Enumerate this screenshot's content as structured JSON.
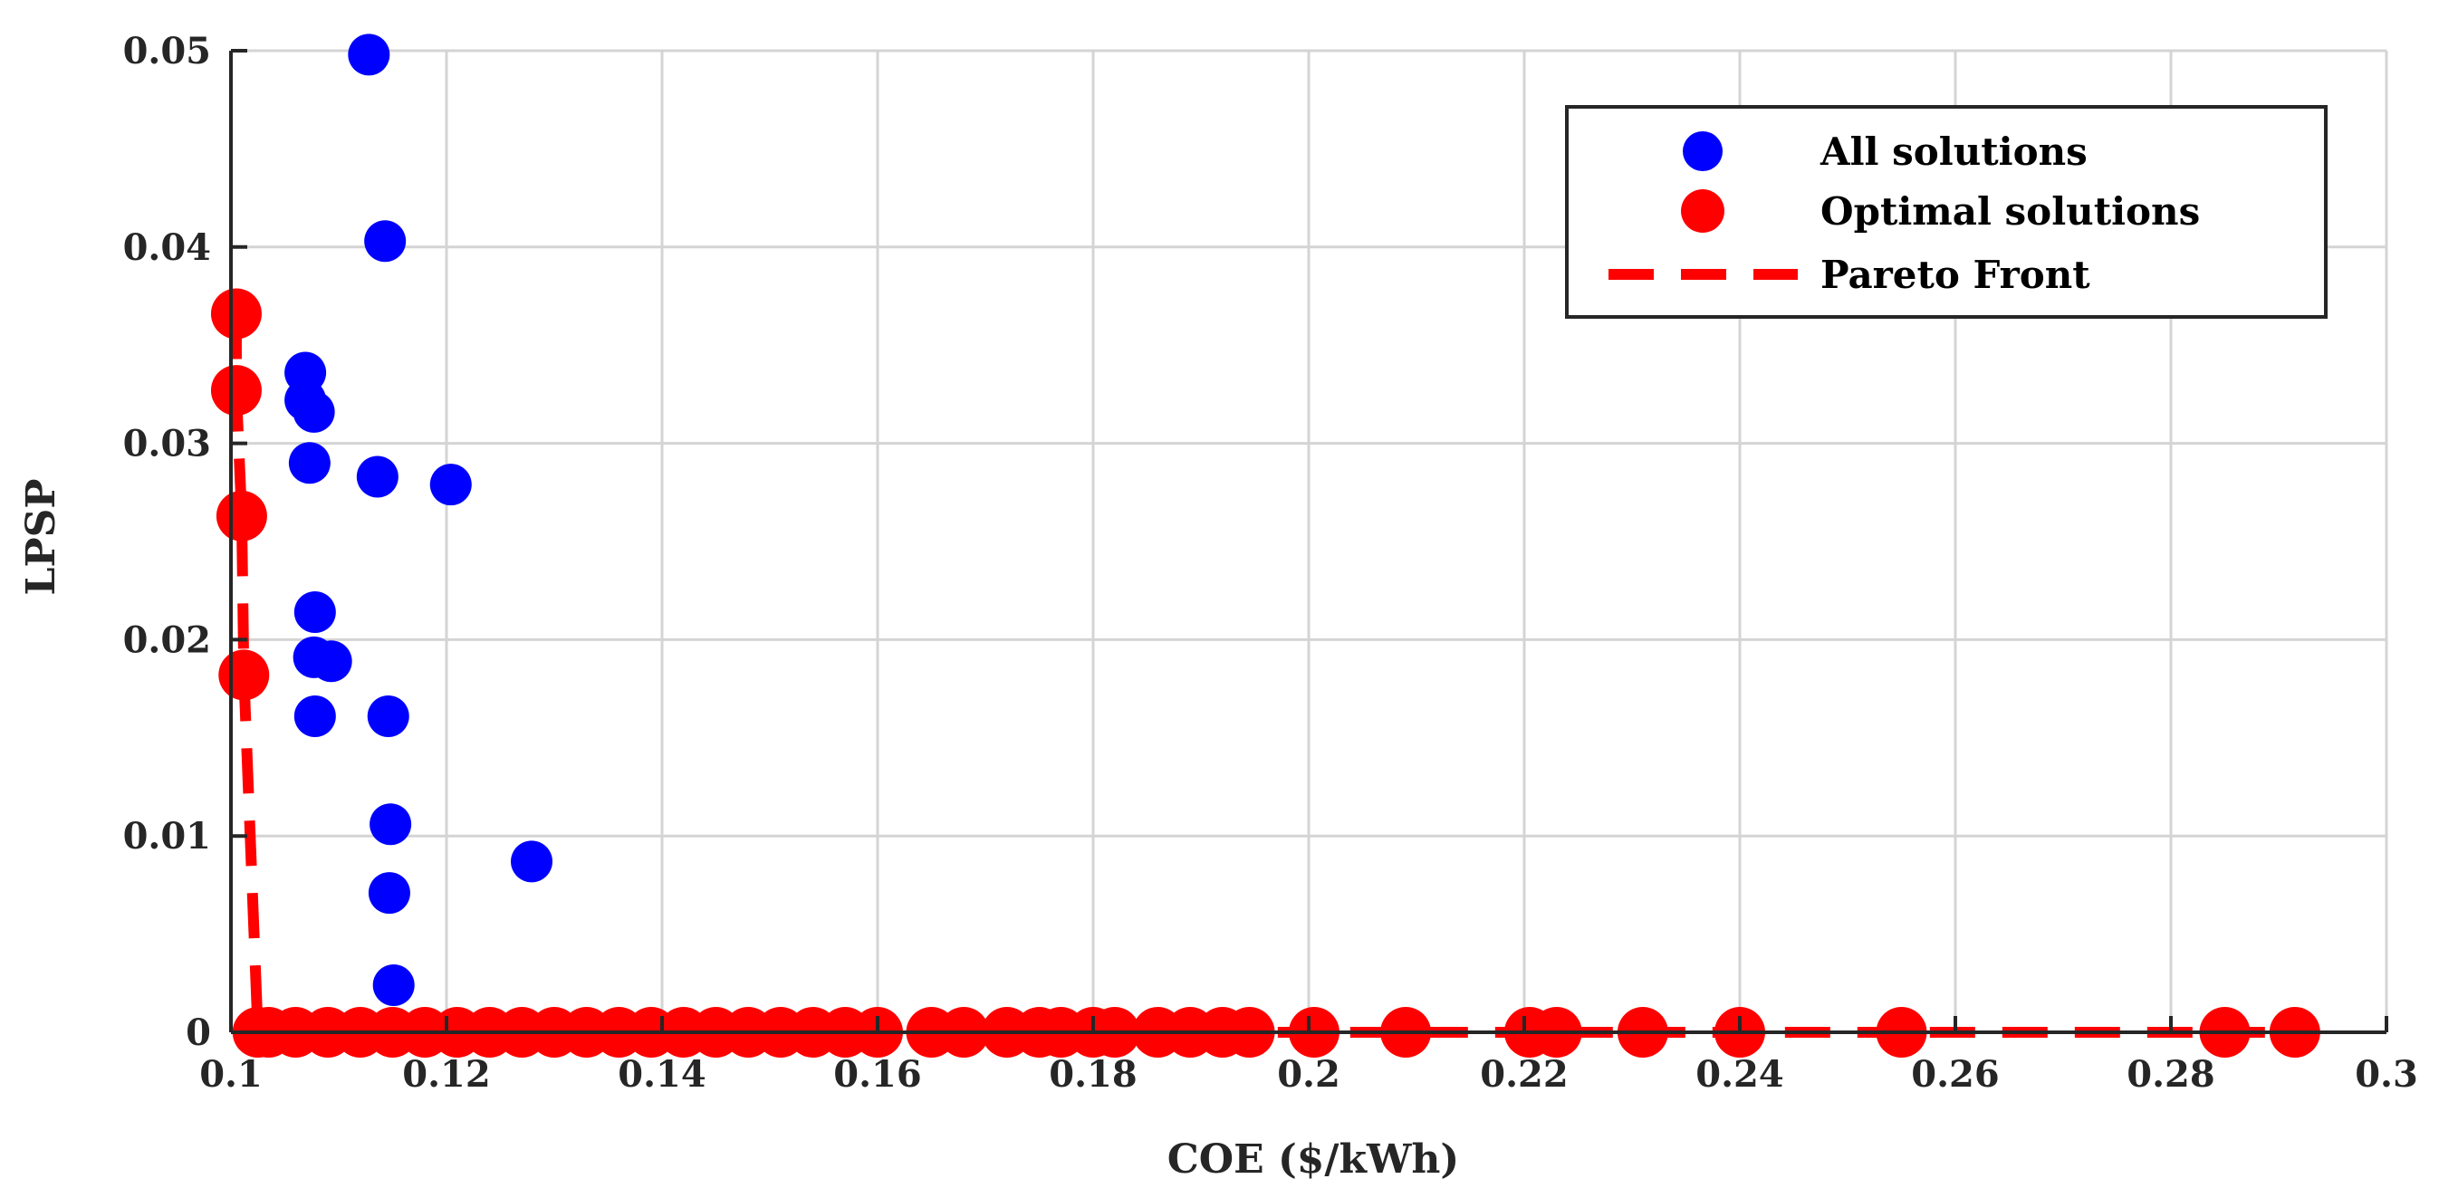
{
  "chart_data": {
    "type": "scatter",
    "title": "",
    "xlabel": "COE ($/kWh)",
    "ylabel": "LPSP",
    "xlim": [
      0.1,
      0.3
    ],
    "ylim": [
      0,
      0.05
    ],
    "xticks": [
      0.1,
      0.12,
      0.14,
      0.16,
      0.18,
      0.2,
      0.22,
      0.24,
      0.26,
      0.28,
      0.3
    ],
    "xtick_labels": [
      "0.1",
      "0.12",
      "0.14",
      "0.16",
      "0.18",
      "0.2",
      "0.22",
      "0.24",
      "0.26",
      "0.28",
      "0.3"
    ],
    "yticks": [
      0,
      0.01,
      0.02,
      0.03,
      0.04,
      0.05
    ],
    "ytick_labels": [
      "0",
      "0.01",
      "0.02",
      "0.03",
      "0.04",
      "0.05"
    ],
    "grid": true,
    "legend_position": "top-right",
    "series": [
      {
        "name": "All solutions",
        "kind": "marker",
        "color": "#0000ff",
        "points": [
          [
            0.1128,
            0.0498
          ],
          [
            0.1143,
            0.0403
          ],
          [
            0.1069,
            0.0336
          ],
          [
            0.1069,
            0.0322
          ],
          [
            0.1077,
            0.0316
          ],
          [
            0.1073,
            0.029
          ],
          [
            0.1136,
            0.0283
          ],
          [
            0.1204,
            0.0279
          ],
          [
            0.1078,
            0.0214
          ],
          [
            0.1077,
            0.0191
          ],
          [
            0.1093,
            0.0189
          ],
          [
            0.1078,
            0.0161
          ],
          [
            0.1146,
            0.0161
          ],
          [
            0.1148,
            0.0106
          ],
          [
            0.1279,
            0.0087
          ],
          [
            0.1147,
            0.0071
          ],
          [
            0.1151,
            0.0024
          ]
        ]
      },
      {
        "name": "Optimal solutions",
        "kind": "marker",
        "color": "#ff0000",
        "points": [
          [
            0.1005,
            0.0366
          ],
          [
            0.1005,
            0.0327
          ],
          [
            0.101,
            0.0263
          ],
          [
            0.1012,
            0.0182
          ],
          [
            0.1025,
            0
          ],
          [
            0.1035,
            0
          ],
          [
            0.106,
            0
          ],
          [
            0.109,
            0
          ],
          [
            0.112,
            0
          ],
          [
            0.115,
            0
          ],
          [
            0.118,
            0
          ],
          [
            0.121,
            0
          ],
          [
            0.124,
            0
          ],
          [
            0.127,
            0
          ],
          [
            0.13,
            0
          ],
          [
            0.133,
            0
          ],
          [
            0.136,
            0
          ],
          [
            0.139,
            0
          ],
          [
            0.142,
            0
          ],
          [
            0.145,
            0
          ],
          [
            0.148,
            0
          ],
          [
            0.151,
            0
          ],
          [
            0.154,
            0
          ],
          [
            0.157,
            0
          ],
          [
            0.16,
            0
          ],
          [
            0.165,
            0
          ],
          [
            0.168,
            0
          ],
          [
            0.172,
            0
          ],
          [
            0.175,
            0
          ],
          [
            0.177,
            0
          ],
          [
            0.18,
            0
          ],
          [
            0.182,
            0
          ],
          [
            0.186,
            0
          ],
          [
            0.189,
            0
          ],
          [
            0.192,
            0
          ],
          [
            0.1945,
            0
          ],
          [
            0.2005,
            0
          ],
          [
            0.209,
            0
          ],
          [
            0.2205,
            0
          ],
          [
            0.223,
            0
          ],
          [
            0.231,
            0
          ],
          [
            0.24,
            0
          ],
          [
            0.255,
            0
          ],
          [
            0.285,
            0
          ],
          [
            0.2915,
            0
          ]
        ]
      },
      {
        "name": "Pareto Front",
        "kind": "dashed-line",
        "color": "#ff0000",
        "points": [
          [
            0.1005,
            0.0366
          ],
          [
            0.1005,
            0.0327
          ],
          [
            0.101,
            0.0263
          ],
          [
            0.1012,
            0.0182
          ],
          [
            0.1025,
            0
          ],
          [
            0.1035,
            0
          ],
          [
            0.115,
            0
          ],
          [
            0.16,
            0
          ],
          [
            0.1945,
            0
          ],
          [
            0.2005,
            0
          ],
          [
            0.209,
            0
          ],
          [
            0.223,
            0
          ],
          [
            0.231,
            0
          ],
          [
            0.24,
            0
          ],
          [
            0.255,
            0
          ],
          [
            0.285,
            0
          ],
          [
            0.2915,
            0
          ]
        ]
      }
    ]
  }
}
